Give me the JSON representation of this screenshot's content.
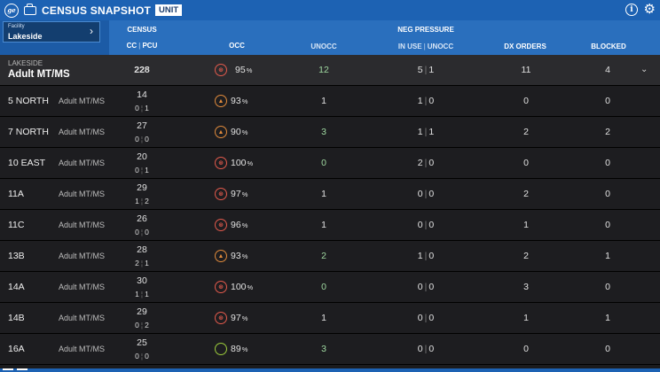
{
  "app": {
    "title": "CENSUS SNAPSHOT",
    "unit_tag": "UNIT",
    "info_icon": "info-circle-icon",
    "settings_icon": "gear-icon"
  },
  "facility": {
    "label": "Facility",
    "value": "Lakeside"
  },
  "headers": {
    "census": "CENSUS",
    "cc_pcu": "CC",
    "pcu": "PCU",
    "occ": "OCC",
    "unocc": "UNOCC",
    "neg_pressure": "NEG PRESSURE",
    "in_use": "IN USE",
    "neg_unocc": "UNOCC",
    "dx_orders": "DX ORDERS",
    "blocked": "BLOCKED"
  },
  "summary": {
    "site": "LAKESIDE",
    "type": "Adult MT/MS",
    "census": "228",
    "occ": "95",
    "occ_status": "red",
    "unocc": "12",
    "neg_in_use": "5",
    "neg_unocc": "1",
    "dx_orders": "11",
    "blocked": "4"
  },
  "rows": [
    {
      "unit": "5 NORTH",
      "type": "Adult MT/MS",
      "census": "14",
      "cc": "0",
      "pcu": "1",
      "occ": "93",
      "occ_status": "orange",
      "unocc": "1",
      "neg_in_use": "1",
      "neg_unocc": "0",
      "dx_orders": "0",
      "blocked": "0"
    },
    {
      "unit": "7 NORTH",
      "type": "Adult MT/MS",
      "census": "27",
      "cc": "0",
      "pcu": "0",
      "occ": "90",
      "occ_status": "orange",
      "unocc": "3",
      "neg_in_use": "1",
      "neg_unocc": "1",
      "dx_orders": "2",
      "blocked": "2"
    },
    {
      "unit": "10 EAST",
      "type": "Adult MT/MS",
      "census": "20",
      "cc": "0",
      "pcu": "1",
      "occ": "100",
      "occ_status": "red",
      "unocc": "0",
      "neg_in_use": "2",
      "neg_unocc": "0",
      "dx_orders": "0",
      "blocked": "0"
    },
    {
      "unit": "11A",
      "type": "Adult MT/MS",
      "census": "29",
      "cc": "1",
      "pcu": "2",
      "occ": "97",
      "occ_status": "red",
      "unocc": "1",
      "neg_in_use": "0",
      "neg_unocc": "0",
      "dx_orders": "2",
      "blocked": "0"
    },
    {
      "unit": "11C",
      "type": "Adult MT/MS",
      "census": "26",
      "cc": "0",
      "pcu": "0",
      "occ": "96",
      "occ_status": "red",
      "unocc": "1",
      "neg_in_use": "0",
      "neg_unocc": "0",
      "dx_orders": "1",
      "blocked": "0"
    },
    {
      "unit": "13B",
      "type": "Adult MT/MS",
      "census": "28",
      "cc": "2",
      "pcu": "1",
      "occ": "93",
      "occ_status": "orange",
      "unocc": "2",
      "neg_in_use": "1",
      "neg_unocc": "0",
      "dx_orders": "2",
      "blocked": "1"
    },
    {
      "unit": "14A",
      "type": "Adult MT/MS",
      "census": "30",
      "cc": "1",
      "pcu": "1",
      "occ": "100",
      "occ_status": "red",
      "unocc": "0",
      "neg_in_use": "0",
      "neg_unocc": "0",
      "dx_orders": "3",
      "blocked": "0"
    },
    {
      "unit": "14B",
      "type": "Adult MT/MS",
      "census": "29",
      "cc": "0",
      "pcu": "2",
      "occ": "97",
      "occ_status": "red",
      "unocc": "1",
      "neg_in_use": "0",
      "neg_unocc": "0",
      "dx_orders": "1",
      "blocked": "1"
    },
    {
      "unit": "16A",
      "type": "Adult MT/MS",
      "census": "25",
      "cc": "0",
      "pcu": "0",
      "occ": "89",
      "occ_status": "green",
      "unocc": "3",
      "neg_in_use": "0",
      "neg_unocc": "0",
      "dx_orders": "0",
      "blocked": "0"
    }
  ]
}
